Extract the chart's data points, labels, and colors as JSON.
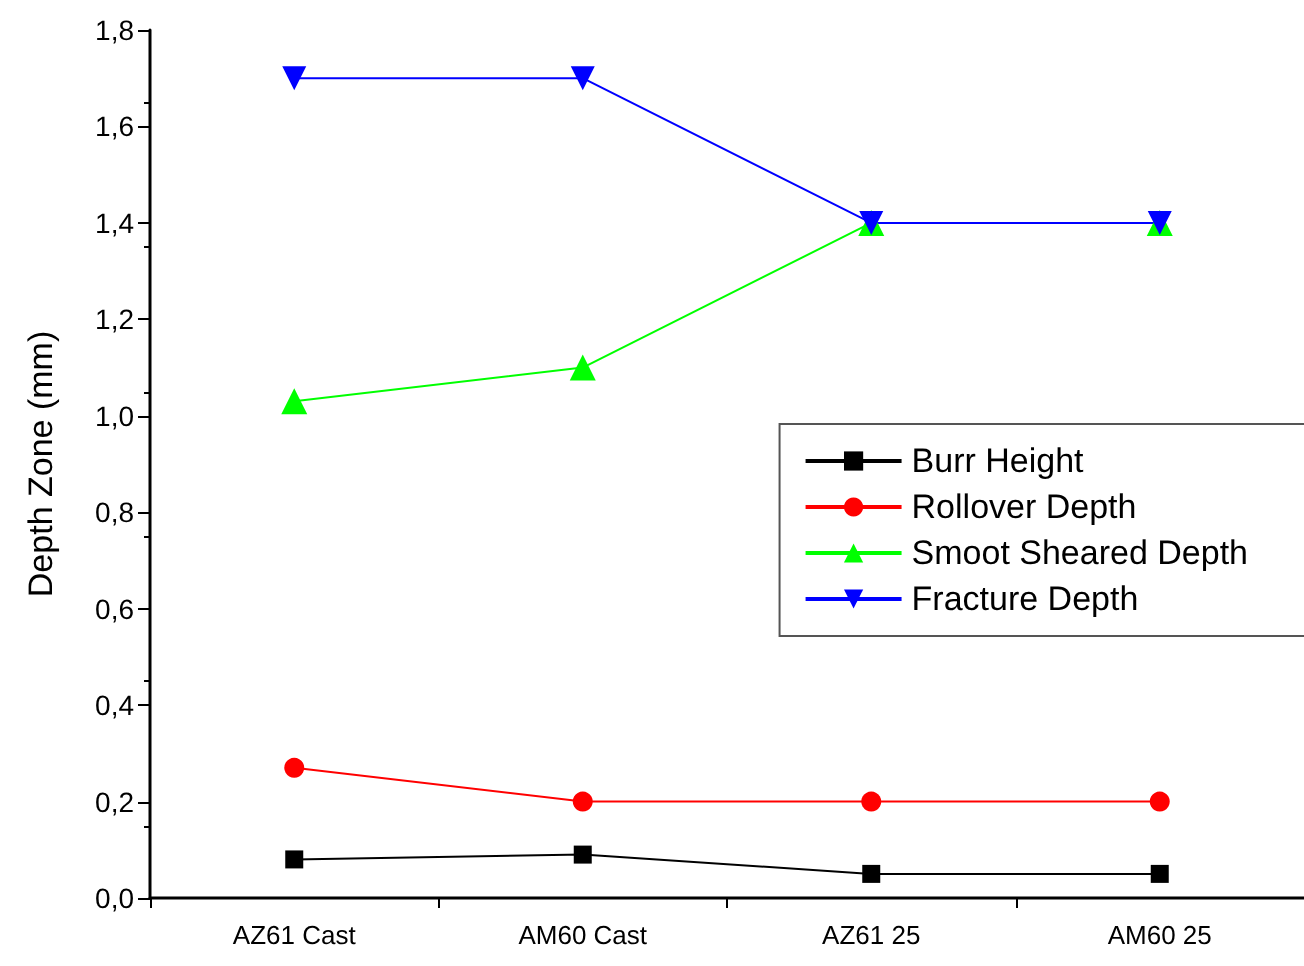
{
  "chart_data": {
    "type": "line",
    "ylabel": "Depth Zone (mm)",
    "categories": [
      "AZ61 Cast",
      "AM60 Cast",
      "AZ61 25",
      "AM60 25"
    ],
    "series": [
      {
        "name": "Burr Height",
        "color": "#000000",
        "marker": "square",
        "values": [
          0.08,
          0.09,
          0.05,
          0.05
        ]
      },
      {
        "name": "Rollover Depth",
        "color": "#ff0000",
        "marker": "circle",
        "values": [
          0.27,
          0.2,
          0.2,
          0.2
        ]
      },
      {
        "name": "Smoot Sheared Depth",
        "color": "#00ff00",
        "marker": "triangle",
        "values": [
          1.03,
          1.1,
          1.4,
          1.4
        ]
      },
      {
        "name": "Fracture Depth",
        "color": "#0000ff",
        "marker": "triangle-down",
        "values": [
          1.7,
          1.7,
          1.4,
          1.4
        ]
      }
    ],
    "ylim": [
      0,
      1.8
    ],
    "yticks": [
      {
        "value": 0,
        "label": "0,0"
      },
      {
        "value": 0.2,
        "label": "0,2"
      },
      {
        "value": 0.4,
        "label": "0,4"
      },
      {
        "value": 0.6,
        "label": "0,6"
      },
      {
        "value": 0.8,
        "label": "0,8"
      },
      {
        "value": 1.0,
        "label": "1,0"
      },
      {
        "value": 1.2,
        "label": "1,2"
      },
      {
        "value": 1.4,
        "label": "1,4"
      },
      {
        "value": 1.6,
        "label": "1,6"
      },
      {
        "value": 1.8,
        "label": "1,8"
      }
    ],
    "grid": false,
    "legend": "right",
    "line_style": "solid"
  }
}
